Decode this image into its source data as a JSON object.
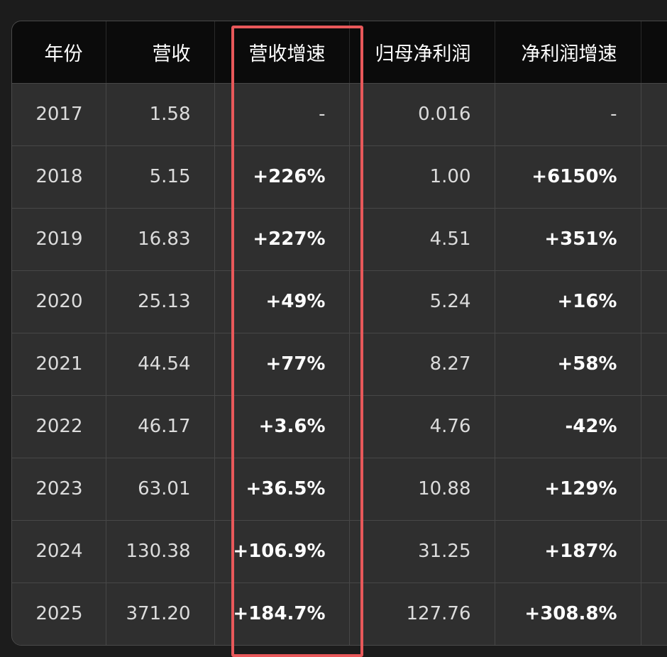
{
  "table": {
    "headers": [
      "年份",
      "营收",
      "营收增速",
      "归母净利润",
      "净利润增速"
    ],
    "rows": [
      {
        "year": "2017",
        "revenue": "1.58",
        "revenue_growth": "-",
        "net_profit": "0.016",
        "profit_growth": "-"
      },
      {
        "year": "2018",
        "revenue": "5.15",
        "revenue_growth": "+226%",
        "net_profit": "1.00",
        "profit_growth": "+6150%"
      },
      {
        "year": "2019",
        "revenue": "16.83",
        "revenue_growth": "+227%",
        "net_profit": "4.51",
        "profit_growth": "+351%"
      },
      {
        "year": "2020",
        "revenue": "25.13",
        "revenue_growth": "+49%",
        "net_profit": "5.24",
        "profit_growth": "+16%"
      },
      {
        "year": "2021",
        "revenue": "44.54",
        "revenue_growth": "+77%",
        "net_profit": "8.27",
        "profit_growth": "+58%"
      },
      {
        "year": "2022",
        "revenue": "46.17",
        "revenue_growth": "+3.6%",
        "net_profit": "4.76",
        "profit_growth": "-42%"
      },
      {
        "year": "2023",
        "revenue": "63.01",
        "revenue_growth": "+36.5%",
        "net_profit": "10.88",
        "profit_growth": "+129%"
      },
      {
        "year": "2024",
        "revenue": "130.38",
        "revenue_growth": "+106.9%",
        "net_profit": "31.25",
        "profit_growth": "+187%"
      },
      {
        "year": "2025",
        "revenue": "371.20",
        "revenue_growth": "+184.7%",
        "net_profit": "127.76",
        "profit_growth": "+308.8%"
      }
    ]
  },
  "highlight": {
    "column": "营收增速",
    "color": "#e8585a"
  },
  "colors": {
    "background": "#1c1c1c",
    "header_bg": "#0b0b0b",
    "cell_bg": "#2f2f2f",
    "grid": "#474747"
  }
}
